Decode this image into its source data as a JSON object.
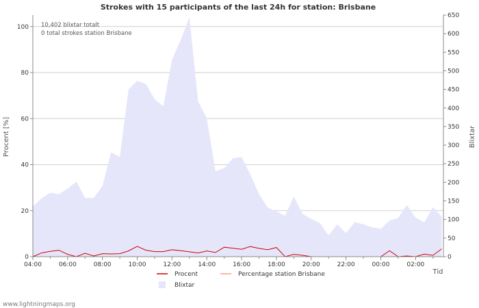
{
  "chart_data": {
    "type": "area",
    "title": "Strokes with 15 participants of the last 24h for station: Brisbane",
    "info_lines": [
      "10,402 blixtar totalt",
      "0 total strokes station Brisbane"
    ],
    "ylabel_left": "Procent   [%]",
    "ylabel_right": "Blixtar",
    "xlabel": "Tid",
    "x_tick_labels": [
      "04:00",
      "06:00",
      "08:00",
      "10:00",
      "12:00",
      "14:00",
      "16:00",
      "18:00",
      "20:00",
      "22:00",
      "00:00",
      "02:00"
    ],
    "x_tick_hours": [
      0,
      2,
      4,
      6,
      8,
      10,
      12,
      14,
      16,
      18,
      20,
      22
    ],
    "x_range_hours": [
      0,
      23.6
    ],
    "y_left": {
      "min": 0,
      "max": 105,
      "ticks": [
        0,
        20,
        40,
        60,
        80,
        100
      ],
      "labels": [
        "0",
        "20",
        "40",
        "60",
        "80",
        "100"
      ]
    },
    "y_right": {
      "min": 0,
      "max": 650,
      "ticks": [
        0,
        50,
        100,
        150,
        200,
        250,
        300,
        350,
        400,
        450,
        500,
        550,
        600,
        650
      ],
      "labels": [
        "0",
        "50",
        "100",
        "150",
        "200",
        "250",
        "300",
        "350",
        "400",
        "450",
        "500",
        "550",
        "600",
        "650"
      ]
    },
    "x_hours": [
      0,
      0.5,
      1,
      1.5,
      2,
      2.5,
      3,
      3.5,
      4,
      4.5,
      5,
      5.5,
      6,
      6.5,
      7,
      7.5,
      8,
      8.5,
      9,
      9.5,
      10,
      10.5,
      11,
      11.5,
      12,
      12.5,
      13,
      13.5,
      14,
      14.5,
      15,
      15.5,
      16,
      16.5,
      17,
      17.5,
      18,
      18.5,
      19,
      19.5,
      20,
      20.5,
      21,
      21.5,
      22,
      22.5,
      23,
      23.5
    ],
    "series": [
      {
        "name": "Blixtar",
        "axis": "right",
        "color": "#e6e6fa",
        "values": [
          135,
          157,
          172,
          168,
          183,
          202,
          158,
          158,
          190,
          281,
          268,
          450,
          473,
          465,
          423,
          405,
          530,
          583,
          644,
          418,
          372,
          230,
          238,
          265,
          268,
          221,
          168,
          132,
          122,
          110,
          162,
          115,
          102,
          90,
          57,
          87,
          63,
          93,
          87,
          79,
          75,
          97,
          104,
          139,
          105,
          92,
          133,
          108
        ]
      },
      {
        "name": "Procent",
        "axis": "left",
        "color": "#d00000",
        "values": [
          0,
          1.6,
          2.3,
          2.8,
          1,
          0,
          1.5,
          0.3,
          1.3,
          1.2,
          1.3,
          2.5,
          4.5,
          2.8,
          2.2,
          2.2,
          3,
          2.6,
          2.1,
          1.6,
          2.5,
          1.8,
          4.1,
          3.7,
          3.2,
          4.4,
          3.6,
          3,
          4,
          0,
          1,
          0.6,
          0,
          0,
          0,
          0,
          0,
          0,
          0,
          0,
          0,
          2.6,
          0,
          0.3,
          0,
          1.1,
          0.6,
          3.4
        ]
      },
      {
        "name": "Percentage station Brisbane",
        "axis": "left",
        "color": "#f7a08c",
        "values": [
          0,
          0,
          0,
          0,
          0,
          0,
          0,
          0,
          0,
          0,
          0,
          0,
          0,
          0,
          0,
          0,
          0,
          0,
          0,
          0,
          0,
          0,
          0,
          0,
          0,
          0,
          0,
          0,
          0,
          0,
          0,
          0,
          0,
          0,
          0,
          0,
          0,
          0,
          0,
          0,
          0,
          0,
          0,
          0,
          0,
          0,
          0,
          0
        ]
      }
    ],
    "legend": [
      {
        "label": "Procent",
        "kind": "line",
        "color": "#d00000"
      },
      {
        "label": "Percentage station Brisbane",
        "kind": "line",
        "color": "#f7a08c"
      },
      {
        "label": "Blixtar",
        "kind": "area",
        "color": "#e6e6fa"
      }
    ],
    "grid": true,
    "legend_position": "bottom-center"
  },
  "footer": {
    "source": "www.lightningmaps.org"
  }
}
